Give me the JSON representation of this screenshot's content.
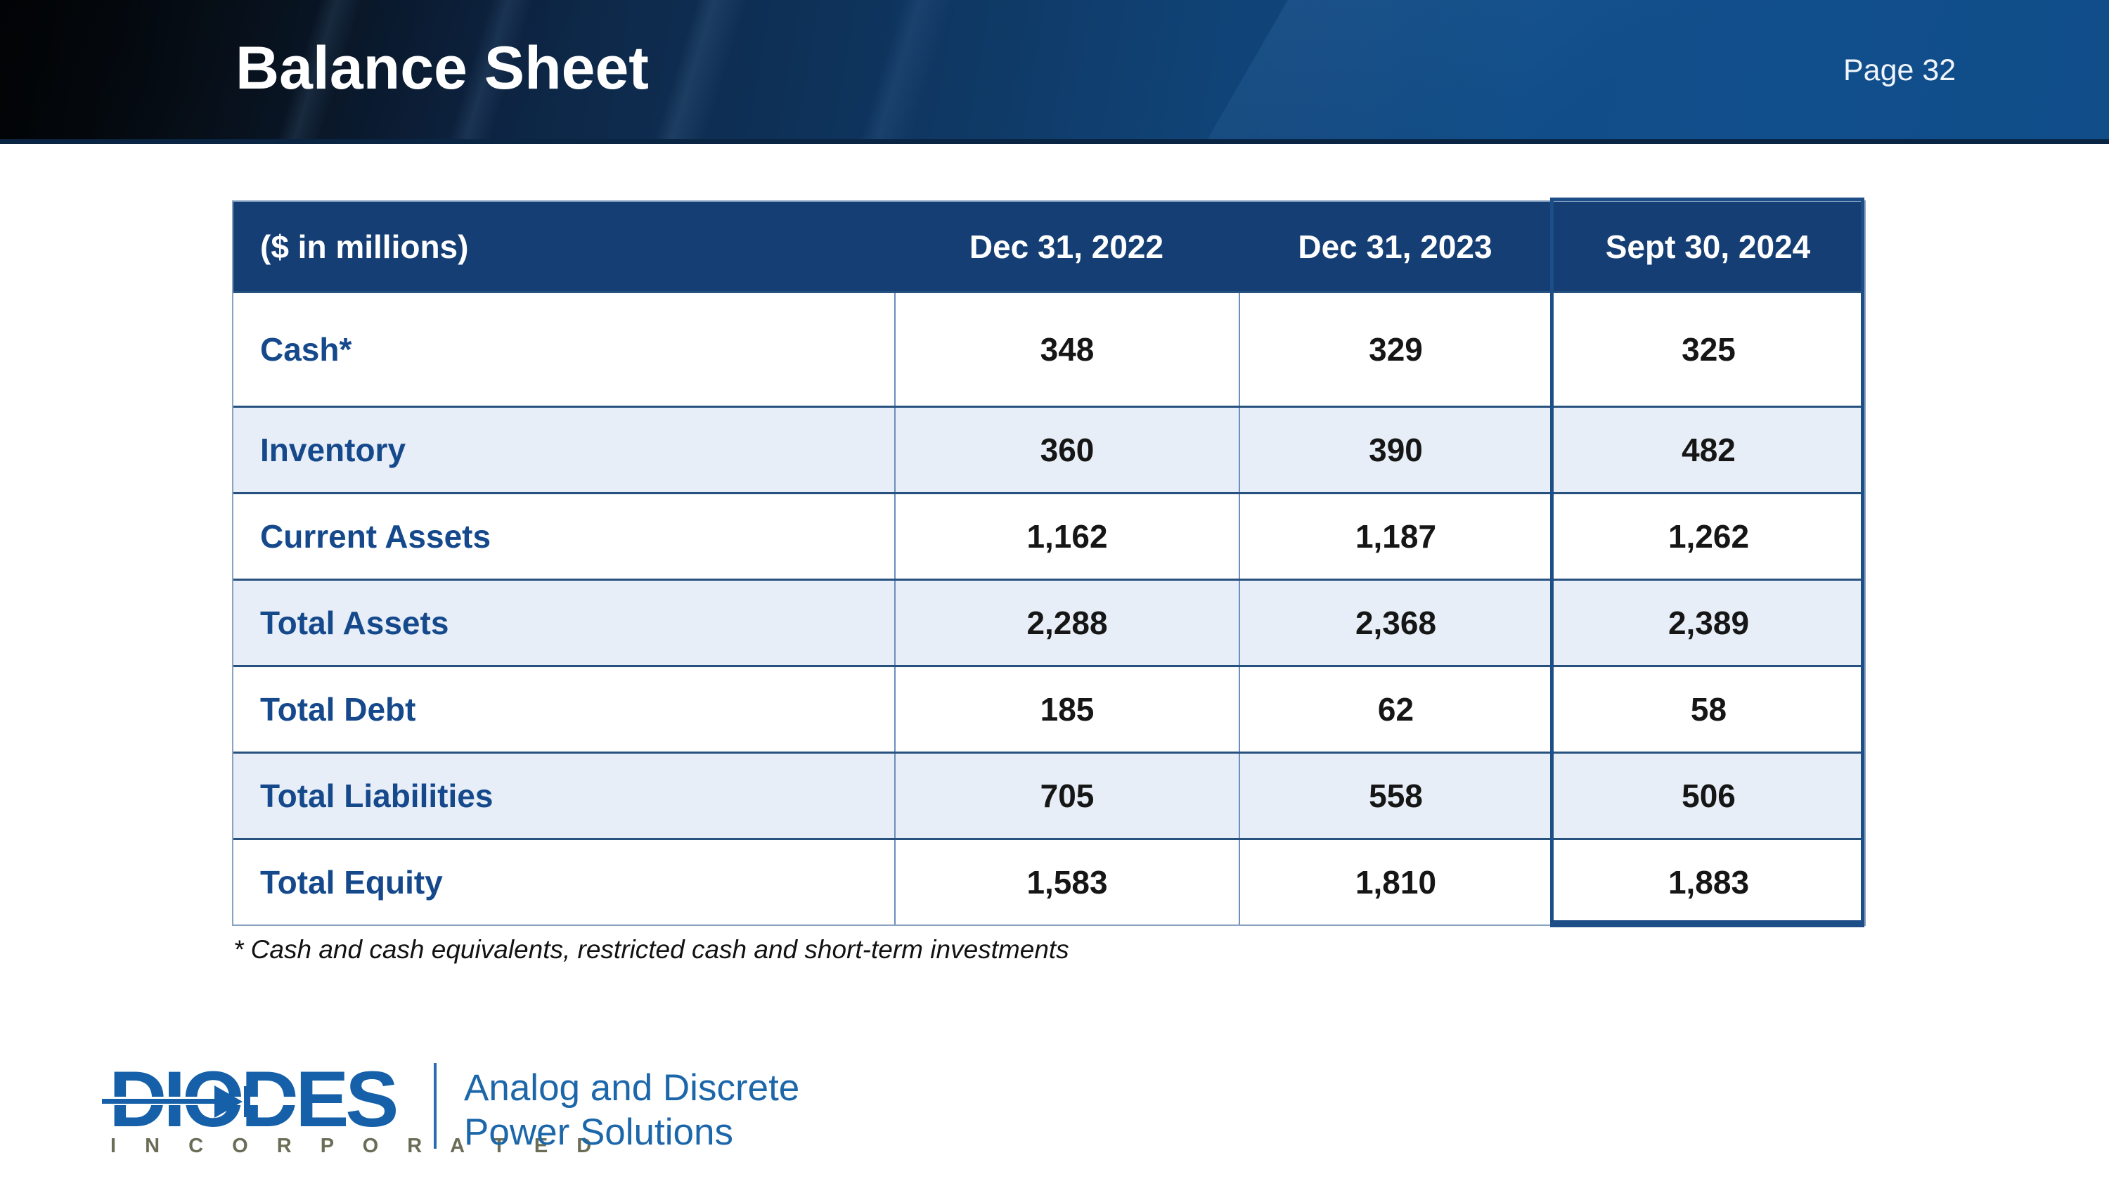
{
  "slide": {
    "title": "Balance Sheet",
    "page_label": "Page 32",
    "footnote": "* Cash and cash equivalents, restricted cash and short-term investments"
  },
  "table": {
    "unit_label": "($ in millions)",
    "columns": [
      "Dec 31, 2022",
      "Dec 31, 2023",
      "Sept 30, 2024"
    ],
    "highlighted_column": "Sept 30, 2024",
    "rows": [
      {
        "label": "Cash*",
        "values": [
          "348",
          "329",
          "325"
        ]
      },
      {
        "label": "Inventory",
        "values": [
          "360",
          "390",
          "482"
        ]
      },
      {
        "label": "Current Assets",
        "values": [
          "1,162",
          "1,187",
          "1,262"
        ]
      },
      {
        "label": "Total Assets",
        "values": [
          "2,288",
          "2,368",
          "2,389"
        ]
      },
      {
        "label": "Total Debt",
        "values": [
          "185",
          "62",
          "58"
        ]
      },
      {
        "label": "Total Liabilities",
        "values": [
          "705",
          "558",
          "506"
        ]
      },
      {
        "label": "Total Equity",
        "values": [
          "1,583",
          "1,810",
          "1,883"
        ]
      }
    ]
  },
  "footer": {
    "logo_text": "DIODES",
    "logo_subtext": "I N C O R P O R A T E D",
    "tagline_line1": "Analog and Discrete",
    "tagline_line2": "Power Solutions"
  },
  "colors": {
    "banner_blue": "#114f8c",
    "header_navy": "#143e74",
    "shaded_row": "#e7eef7",
    "label_blue": "#15498c",
    "highlight_border": "#1d4e87",
    "logo_blue": "#1560a8",
    "tagline_blue": "#1c67a9",
    "incorporated_olive": "#6c6d57"
  }
}
